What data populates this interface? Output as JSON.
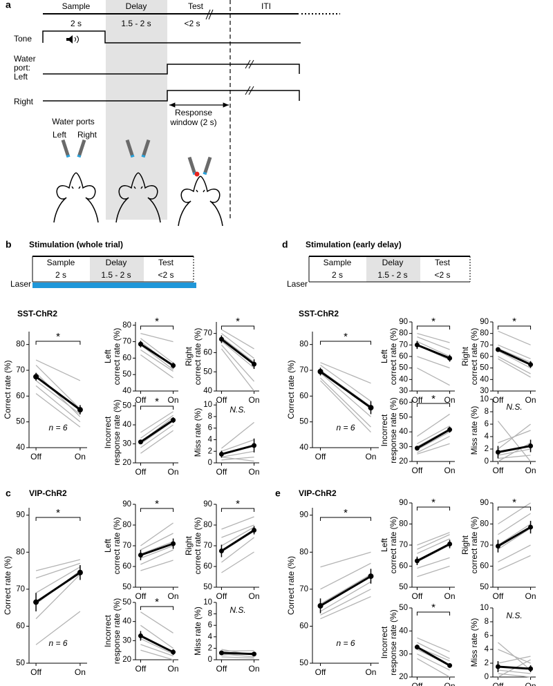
{
  "panel_a": {
    "letter": "a",
    "phases": [
      "Sample",
      "Delay",
      "Test",
      "ITI"
    ],
    "durations": [
      "2 s",
      "1.5 - 2 s",
      "<2 s"
    ],
    "tone": "Tone",
    "water_port": [
      "Water",
      "port:",
      "Left"
    ],
    "right": "Right",
    "response_window": [
      "Response",
      "window (2 s)"
    ],
    "ports_label": "Water ports",
    "port_left": "Left",
    "port_right": "Right"
  },
  "stim_panels": [
    {
      "letter": "b",
      "title": "Stimulation (whole trial)",
      "phases": [
        "Sample",
        "Delay",
        "Test"
      ],
      "durations": [
        "2 s",
        "1.5 - 2 s",
        "<2 s"
      ],
      "laser": "Laser"
    },
    {
      "letter": "d",
      "title": "Stimulation (early delay)",
      "phases": [
        "Sample",
        "Delay",
        "Test"
      ],
      "durations": [
        "2 s",
        "1.5 - 2 s",
        "<2 s"
      ],
      "laser": "Laser"
    }
  ],
  "groups": [
    {
      "title": "SST-ChR2"
    },
    {
      "title": "SST-ChR2"
    },
    {
      "letter": "c",
      "title": "VIP-ChR2"
    },
    {
      "letter": "e",
      "title": "VIP-ChR2"
    }
  ],
  "chart_data": [
    {
      "type": "line",
      "ylabel": [
        "Correct rate (%)"
      ],
      "categories": [
        "Off",
        "On"
      ],
      "ylim": [
        40,
        85
      ],
      "yticks": [
        40,
        50,
        60,
        70,
        80
      ],
      "mean": [
        67.5,
        54.7
      ],
      "error": [
        1.5,
        1.8
      ],
      "individual": [
        [
          74,
          66
        ],
        [
          72,
          55
        ],
        [
          69,
          52
        ],
        [
          66,
          53
        ],
        [
          64,
          50
        ],
        [
          61,
          48
        ]
      ],
      "annotation": "*",
      "bracket": true,
      "n_label": "n = 6"
    },
    {
      "type": "line",
      "ylabel": [
        "Left",
        "correct rate (%)"
      ],
      "categories": [
        "Off",
        "On"
      ],
      "ylim": [
        40,
        82
      ],
      "yticks": [
        40,
        50,
        60,
        70,
        80
      ],
      "mean": [
        68.5,
        55.5
      ],
      "error": [
        2,
        1.8
      ],
      "individual": [
        [
          75,
          70
        ],
        [
          72,
          57
        ],
        [
          70,
          55
        ],
        [
          68,
          53
        ],
        [
          65,
          52
        ],
        [
          62,
          48
        ]
      ],
      "annotation": "*",
      "bracket": true
    },
    {
      "type": "line",
      "ylabel": [
        "Right",
        "correct rate (%)"
      ],
      "categories": [
        "Off",
        "On"
      ],
      "ylim": [
        40,
        76
      ],
      "yticks": [
        40,
        50,
        60,
        70
      ],
      "mean": [
        67,
        54
      ],
      "error": [
        2,
        2.5
      ],
      "individual": [
        [
          72,
          62
        ],
        [
          70,
          57
        ],
        [
          68,
          55
        ],
        [
          66,
          52
        ],
        [
          64,
          45
        ],
        [
          62,
          40
        ]
      ],
      "annotation": "*",
      "bracket": true
    },
    {
      "type": "line",
      "ylabel": [
        "Incorrect",
        "response rate (%)"
      ],
      "categories": [
        "Off",
        "On"
      ],
      "ylim": [
        20,
        52
      ],
      "yticks": [
        20,
        30,
        40,
        50
      ],
      "mean": [
        31,
        42.5
      ],
      "error": [
        1.2,
        1.5
      ],
      "individual": [
        [
          36,
          47
        ],
        [
          33,
          45
        ],
        [
          31,
          44
        ],
        [
          30,
          42
        ],
        [
          28,
          40
        ],
        [
          25,
          37
        ]
      ],
      "annotation": "*",
      "bracket": true
    },
    {
      "type": "line",
      "ylabel": [
        "Miss rate (%)"
      ],
      "categories": [
        "Off",
        "On"
      ],
      "ylim": [
        0,
        10.5
      ],
      "yticks": [
        0,
        2,
        4,
        6,
        8,
        10
      ],
      "mean": [
        1.5,
        3
      ],
      "error": [
        0.6,
        1.2
      ],
      "individual": [
        [
          2.5,
          7
        ],
        [
          2,
          4
        ],
        [
          1.5,
          3
        ],
        [
          1,
          2
        ],
        [
          0.5,
          1
        ],
        [
          1,
          0.3
        ]
      ],
      "annotation": "N.S.",
      "bracket": false
    },
    {
      "type": "line",
      "ylabel": [
        "Correct rate (%)"
      ],
      "categories": [
        "Off",
        "On"
      ],
      "ylim": [
        40,
        85
      ],
      "yticks": [
        40,
        50,
        60,
        70,
        80
      ],
      "mean": [
        69.5,
        55.5
      ],
      "error": [
        1.5,
        2.5
      ],
      "individual": [
        [
          73,
          65
        ],
        [
          72,
          58
        ],
        [
          70,
          56
        ],
        [
          69,
          52
        ],
        [
          67,
          48
        ],
        [
          66,
          46
        ]
      ],
      "annotation": "*",
      "bracket": true,
      "n_label": "n = 6"
    },
    {
      "type": "line",
      "ylabel": [
        "Left",
        "correct rate (%)"
      ],
      "categories": [
        "Off",
        "On"
      ],
      "ylim": [
        30,
        90
      ],
      "yticks": [
        30,
        40,
        50,
        60,
        70,
        80,
        90
      ],
      "mean": [
        70,
        58.5
      ],
      "error": [
        3.5,
        3
      ],
      "individual": [
        [
          80,
          72
        ],
        [
          77,
          66
        ],
        [
          73,
          60
        ],
        [
          70,
          57
        ],
        [
          60,
          50
        ],
        [
          50,
          35
        ]
      ],
      "annotation": "*",
      "bracket": true
    },
    {
      "type": "line",
      "ylabel": [
        "Right",
        "correct rate (%)"
      ],
      "categories": [
        "Off",
        "On"
      ],
      "ylim": [
        30,
        90
      ],
      "yticks": [
        30,
        40,
        50,
        60,
        70,
        80,
        90
      ],
      "mean": [
        66,
        53
      ],
      "error": [
        2,
        3
      ],
      "individual": [
        [
          82,
          70
        ],
        [
          70,
          58
        ],
        [
          67,
          55
        ],
        [
          65,
          50
        ],
        [
          60,
          45
        ],
        [
          58,
          42
        ]
      ],
      "annotation": "*",
      "bracket": true
    },
    {
      "type": "line",
      "ylabel": [
        "Incorrect",
        "response rate (%)"
      ],
      "categories": [
        "Off",
        "On"
      ],
      "ylim": [
        20,
        62
      ],
      "yticks": [
        20,
        30,
        40,
        50,
        60
      ],
      "mean": [
        29,
        41.5
      ],
      "error": [
        1.5,
        2
      ],
      "individual": [
        [
          37,
          52
        ],
        [
          32,
          44
        ],
        [
          30,
          42
        ],
        [
          28,
          40
        ],
        [
          26,
          37
        ],
        [
          25,
          32
        ]
      ],
      "annotation": "*",
      "bracket": true
    },
    {
      "type": "line",
      "ylabel": [
        "Miss rate (%)"
      ],
      "categories": [
        "Off",
        "On"
      ],
      "ylim": [
        0,
        10
      ],
      "yticks": [
        0,
        2,
        4,
        6,
        8,
        10
      ],
      "mean": [
        1.5,
        2.5
      ],
      "error": [
        1,
        1
      ],
      "individual": [
        [
          6.5,
          0
        ],
        [
          3,
          5
        ],
        [
          2,
          6
        ],
        [
          1,
          2
        ],
        [
          0,
          3
        ],
        [
          0.5,
          1
        ]
      ],
      "annotation": "N.S.",
      "bracket": false
    },
    {
      "type": "line",
      "ylabel": [
        "Correct rate (%)"
      ],
      "categories": [
        "Off",
        "On"
      ],
      "ylim": [
        50,
        92
      ],
      "yticks": [
        50,
        60,
        70,
        80,
        90
      ],
      "mean": [
        66.5,
        74.5
      ],
      "error": [
        2.5,
        2
      ],
      "individual": [
        [
          75,
          78
        ],
        [
          73,
          77
        ],
        [
          69,
          76
        ],
        [
          66,
          75
        ],
        [
          62,
          74
        ],
        [
          55,
          64
        ]
      ],
      "annotation": "*",
      "bracket": true,
      "n_label": "n = 6"
    },
    {
      "type": "line",
      "ylabel": [
        "Left",
        "correct rate (%)"
      ],
      "categories": [
        "Off",
        "On"
      ],
      "ylim": [
        50,
        90
      ],
      "yticks": [
        50,
        60,
        70,
        80,
        90
      ],
      "mean": [
        65.5,
        71
      ],
      "error": [
        2.5,
        2.5
      ],
      "individual": [
        [
          70,
          81
        ],
        [
          68,
          76
        ],
        [
          66,
          72
        ],
        [
          64,
          70
        ],
        [
          61,
          68
        ],
        [
          58,
          63
        ]
      ],
      "annotation": "*",
      "bracket": true
    },
    {
      "type": "line",
      "ylabel": [
        "Right",
        "correct rate (%)"
      ],
      "categories": [
        "Off",
        "On"
      ],
      "ylim": [
        50,
        90
      ],
      "yticks": [
        50,
        60,
        70,
        80,
        90
      ],
      "mean": [
        67.5,
        77.5
      ],
      "error": [
        3,
        2
      ],
      "individual": [
        [
          78,
          84
        ],
        [
          74,
          80
        ],
        [
          70,
          79
        ],
        [
          67,
          77
        ],
        [
          62,
          74
        ],
        [
          57,
          67
        ]
      ],
      "annotation": "*",
      "bracket": true
    },
    {
      "type": "line",
      "ylabel": [
        "Incorrect",
        "response rate (%)"
      ],
      "categories": [
        "Off",
        "On"
      ],
      "ylim": [
        20,
        50
      ],
      "yticks": [
        20,
        30,
        40,
        50
      ],
      "mean": [
        32.5,
        24
      ],
      "error": [
        2.5,
        1.5
      ],
      "individual": [
        [
          45,
          34
        ],
        [
          38,
          26
        ],
        [
          33,
          24
        ],
        [
          31,
          23
        ],
        [
          28,
          22
        ],
        [
          25,
          20
        ]
      ],
      "annotation": "*",
      "bracket": true
    },
    {
      "type": "line",
      "ylabel": [
        "Miss rate (%)"
      ],
      "categories": [
        "Off",
        "On"
      ],
      "ylim": [
        0,
        10
      ],
      "yticks": [
        0,
        2,
        4,
        6,
        8,
        10
      ],
      "mean": [
        1.2,
        1
      ],
      "error": [
        0.3,
        0.3
      ],
      "individual": [
        [
          1.8,
          0.8
        ],
        [
          1.5,
          1.6
        ],
        [
          1.2,
          1
        ],
        [
          1,
          0.5
        ],
        [
          0.8,
          1.2
        ],
        [
          0.5,
          0.3
        ]
      ],
      "annotation": "N.S.",
      "bracket": false
    },
    {
      "type": "line",
      "ylabel": [
        "Correct rate (%)"
      ],
      "categories": [
        "Off",
        "On"
      ],
      "ylim": [
        50,
        92
      ],
      "yticks": [
        50,
        60,
        70,
        80,
        90
      ],
      "mean": [
        65.5,
        73.5
      ],
      "error": [
        2,
        2
      ],
      "individual": [
        [
          76,
          80
        ],
        [
          70,
          77
        ],
        [
          66,
          74
        ],
        [
          64,
          72
        ],
        [
          63,
          70
        ],
        [
          62,
          68
        ]
      ],
      "annotation": "*",
      "bracket": true,
      "n_label": "n = 6"
    },
    {
      "type": "line",
      "ylabel": [
        "Left",
        "correct rate (%)"
      ],
      "categories": [
        "Off",
        "On"
      ],
      "ylim": [
        50,
        90
      ],
      "yticks": [
        50,
        60,
        70,
        80,
        90
      ],
      "mean": [
        62.5,
        70.5
      ],
      "error": [
        2,
        2
      ],
      "individual": [
        [
          70,
          76
        ],
        [
          68,
          75
        ],
        [
          66,
          73
        ],
        [
          62,
          70
        ],
        [
          59,
          64
        ],
        [
          55,
          60
        ]
      ],
      "annotation": "*",
      "bracket": true
    },
    {
      "type": "line",
      "ylabel": [
        "Right",
        "correct rate (%)"
      ],
      "categories": [
        "Off",
        "On"
      ],
      "ylim": [
        50,
        90
      ],
      "yticks": [
        50,
        60,
        70,
        80,
        90
      ],
      "mean": [
        69.5,
        78.5
      ],
      "error": [
        3,
        3
      ],
      "individual": [
        [
          80,
          90
        ],
        [
          75,
          85
        ],
        [
          70,
          80
        ],
        [
          68,
          78
        ],
        [
          62,
          70
        ],
        [
          58,
          65
        ]
      ],
      "annotation": "*",
      "bracket": true
    },
    {
      "type": "line",
      "ylabel": [
        "Incorrect",
        "response rate (%)"
      ],
      "categories": [
        "Off",
        "On"
      ],
      "ylim": [
        20,
        50
      ],
      "yticks": [
        20,
        30,
        40,
        50
      ],
      "mean": [
        33,
        25
      ],
      "error": [
        1,
        1
      ],
      "individual": [
        [
          37,
          31
        ],
        [
          35,
          28
        ],
        [
          33,
          27
        ],
        [
          32,
          25
        ],
        [
          30,
          23
        ],
        [
          28,
          20
        ]
      ],
      "annotation": "*",
      "bracket": true
    },
    {
      "type": "line",
      "ylabel": [
        "Miss rate (%)"
      ],
      "categories": [
        "Off",
        "On"
      ],
      "ylim": [
        0,
        10
      ],
      "yticks": [
        0,
        2,
        4,
        6,
        8,
        10
      ],
      "mean": [
        1.5,
        1.2
      ],
      "error": [
        0.8,
        0.5
      ],
      "individual": [
        [
          5,
          1
        ],
        [
          4,
          2
        ],
        [
          2,
          3
        ],
        [
          1,
          0.5
        ],
        [
          0,
          2.5
        ],
        [
          0.5,
          0
        ]
      ],
      "annotation": "N.S.",
      "bracket": false
    }
  ]
}
